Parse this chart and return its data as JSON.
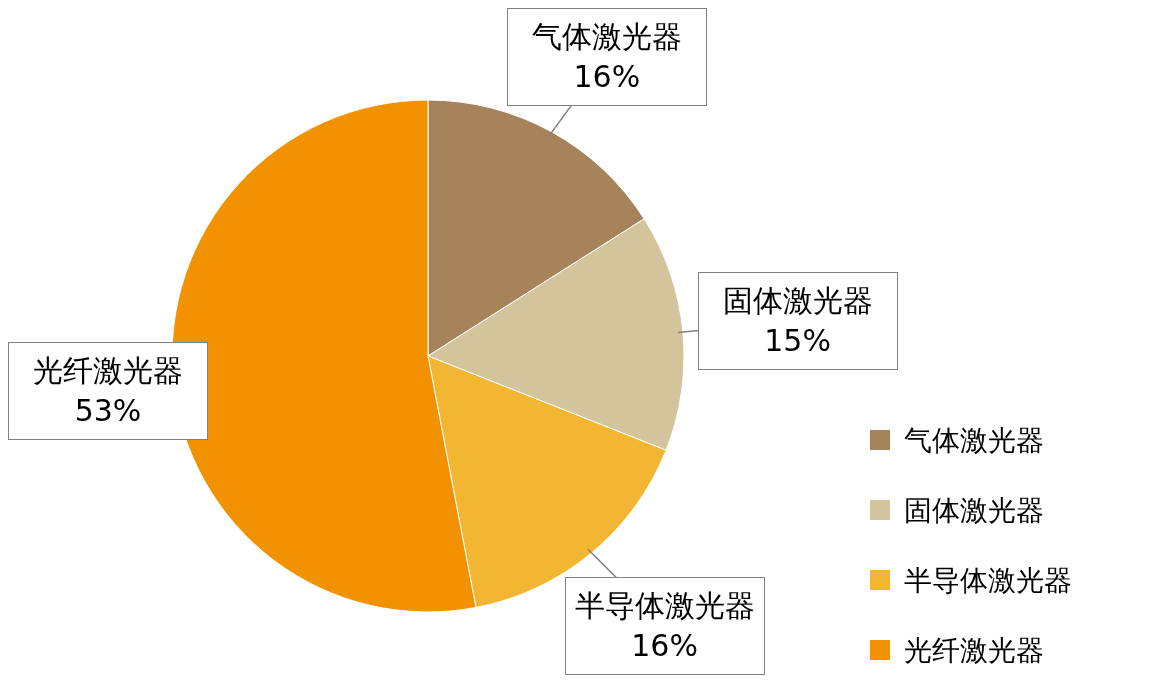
{
  "chart_data": {
    "type": "pie",
    "categories": [
      "气体激光器",
      "固体激光器",
      "半导体激光器",
      "光纤激光器"
    ],
    "values": [
      16,
      15,
      16,
      53
    ],
    "colors": [
      "#a6835b",
      "#d4c49c",
      "#f3b632",
      "#f39200"
    ],
    "value_labels": [
      "16%",
      "15%",
      "16%",
      "53%"
    ],
    "legend": "right"
  }
}
